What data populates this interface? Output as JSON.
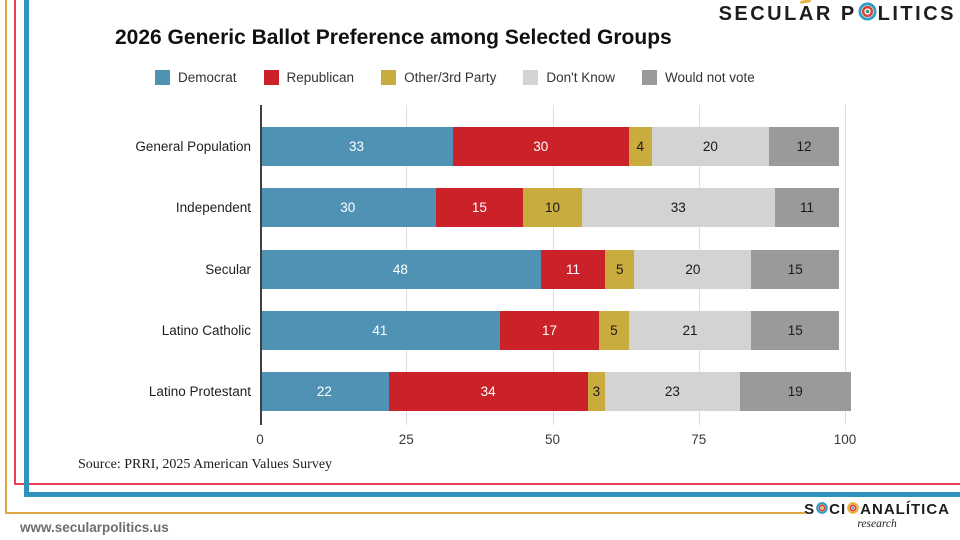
{
  "logos": {
    "top": {
      "left": "SECUL",
      "a": "A",
      "mid": "R P",
      "right": "LITICS"
    },
    "bottom": {
      "p1": "S",
      "p2": "CI",
      "p3": "ANALÍTICA",
      "sub": "research"
    }
  },
  "chart_data": {
    "type": "bar",
    "orientation": "horizontal",
    "stacked": true,
    "title": "2026 Generic Ballot Preference among Selected Groups",
    "categories": [
      "General Population",
      "Independent",
      "Secular",
      "Latino Catholic",
      "Latino Protestant"
    ],
    "series": [
      {
        "name": "Democrat",
        "color": "#4f92b4",
        "label_color": "#ffffff",
        "values": [
          33,
          30,
          48,
          41,
          22
        ]
      },
      {
        "name": "Republican",
        "color": "#cb2128",
        "label_color": "#ffffff",
        "values": [
          30,
          15,
          11,
          17,
          34
        ]
      },
      {
        "name": "Other/3rd Party",
        "color": "#c9ab3e",
        "label_color": "#1a1a1a",
        "values": [
          4,
          10,
          5,
          5,
          3
        ]
      },
      {
        "name": "Don't Know",
        "color": "#d3d3d3",
        "label_color": "#1a1a1a",
        "values": [
          20,
          33,
          20,
          21,
          23
        ]
      },
      {
        "name": "Would not vote",
        "color": "#9a9a9a",
        "label_color": "#1a1a1a",
        "values": [
          12,
          11,
          15,
          15,
          19
        ]
      }
    ],
    "x_ticks": [
      0,
      25,
      50,
      75,
      100
    ],
    "xlim": [
      0,
      100
    ],
    "grid": true,
    "legend_position": "top"
  },
  "source": "Source: PRRI, 2025 American Values Survey",
  "footer": {
    "url": "www.secularpolitics.us"
  }
}
